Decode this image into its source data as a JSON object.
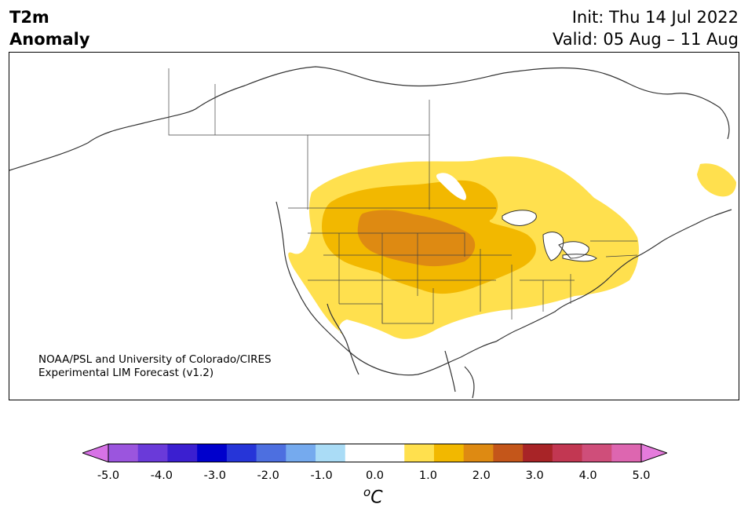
{
  "title": {
    "line1": "T2m",
    "line2": "Anomaly",
    "init": "Init: Thu 14 Jul 2022",
    "valid": "Valid: 05 Aug – 11 Aug"
  },
  "credit": {
    "line1": "NOAA/PSL and University of Colorado/CIRES",
    "line2": "Experimental LIM Forecast (v1.2)"
  },
  "colorbar": {
    "unit_base": "C",
    "unit_sup": "o",
    "ticks": [
      "-5.0",
      "-4.0",
      "-3.0",
      "-2.0",
      "-1.0",
      "0.0",
      "1.0",
      "2.0",
      "3.0",
      "4.0",
      "5.0"
    ],
    "colors": [
      "#d772e6",
      "#9b55de",
      "#6a3ad9",
      "#3b1fd0",
      "#0000cc",
      "#2635d8",
      "#4d6fe0",
      "#75aaee",
      "#aadcf6",
      "#ffffff",
      "#ffffff",
      "#ffe04e",
      "#f2b800",
      "#de8a12",
      "#c4561a",
      "#a82427",
      "#c23752",
      "#cf4e7a",
      "#dd66b0",
      "#e57bdc"
    ]
  },
  "map": {
    "region": "North America",
    "field": "2m temperature anomaly"
  }
}
